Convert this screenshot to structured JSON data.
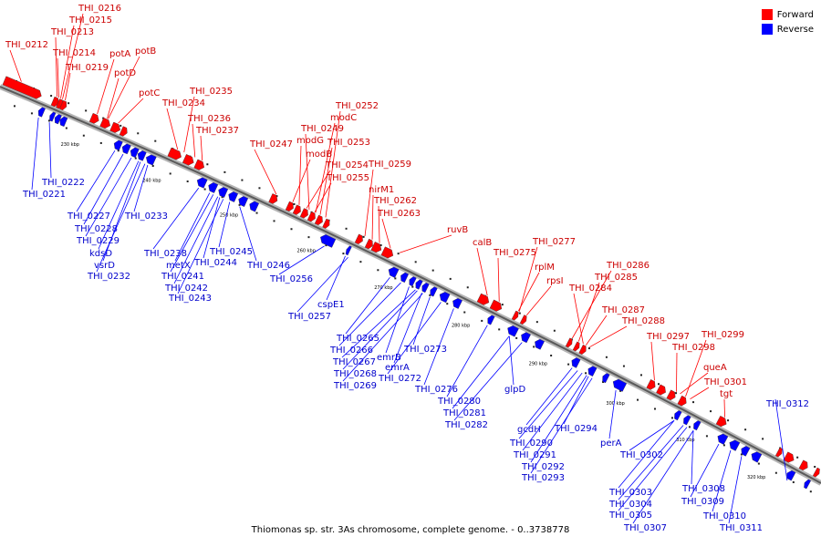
{
  "legend": {
    "forward_label": "Forward",
    "reverse_label": "Reverse",
    "forward_color": "#ff0000",
    "reverse_color": "#0000ff"
  },
  "caption": "Thiomonas sp. str. 3As chromosome, complete genome. - 0..3738778",
  "tick_labels": [
    "230 kbp",
    "240 kbp",
    "250 kbp",
    "260 kbp",
    "270 kbp",
    "280 kbp",
    "290 kbp",
    "300 kbp",
    "310 kbp",
    "320 kbp"
  ],
  "forward_labels": [
    "THI_0212",
    "THI_0216",
    "THI_0215",
    "THI_0213",
    "THI_0214",
    "THI_0219",
    "potA",
    "potB",
    "potD",
    "potC",
    "THI_0235",
    "THI_0234",
    "THI_0236",
    "THI_0237",
    "THI_0247",
    "THI_0252",
    "modC",
    "THI_0249",
    "modG",
    "THI_0253",
    "modB",
    "THI_0254",
    "THI_0255",
    "THI_0259",
    "nirM1",
    "THI_0262",
    "THI_0263",
    "ruvB",
    "calB",
    "THI_0275",
    "THI_0277",
    "rplM",
    "rpsI",
    "THI_0286",
    "THI_0285",
    "THI_0284",
    "THI_0287",
    "THI_0288",
    "THI_0297",
    "THI_0299",
    "THI_0298",
    "queA",
    "THI_0301",
    "tgt"
  ],
  "reverse_labels": [
    "THI_0222",
    "THI_0221",
    "THI_0227",
    "THI_0233",
    "THI_0228",
    "THI_0229",
    "kdsD",
    "vsrD",
    "THI_0232",
    "THI_0238",
    "metX",
    "THI_0245",
    "THI_0244",
    "THI_0241",
    "THI_0246",
    "THI_0242",
    "THI_0243",
    "THI_0256",
    "cspE1",
    "THI_0257",
    "THI_0265",
    "THI_0266",
    "emrB",
    "THI_0273",
    "THI_0267",
    "emrA",
    "THI_0268",
    "THI_0272",
    "THI_0269",
    "THI_0276",
    "THI_0280",
    "glpD",
    "THI_0281",
    "THI_0282",
    "gcdH",
    "THI_0294",
    "THI_0290",
    "perA",
    "THI_0291",
    "THI_0302",
    "THI_0292",
    "THI_0293",
    "THI_0312",
    "THI_0303",
    "THI_0308",
    "THI_0304",
    "THI_0309",
    "THI_0305",
    "THI_0310",
    "THI_0307",
    "THI_0311"
  ]
}
